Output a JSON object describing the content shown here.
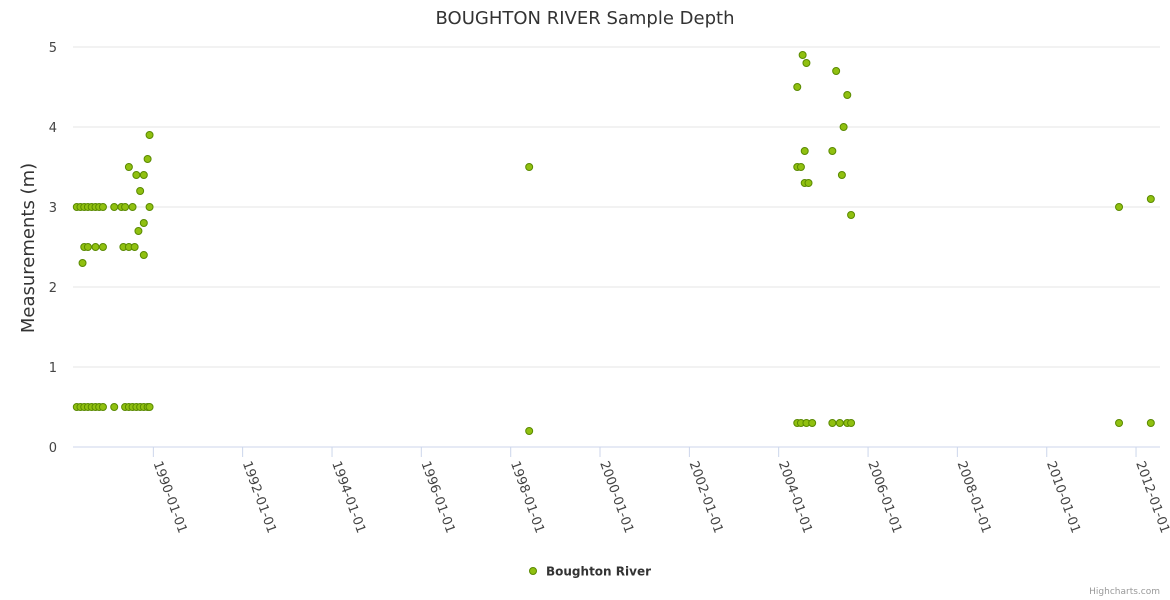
{
  "chart_data": {
    "type": "scatter",
    "title": "BOUGHTON RIVER Sample Depth",
    "xlabel": "",
    "ylabel": "Measurements (m)",
    "xlim": [
      "1988-03-15",
      "2012-07-15"
    ],
    "ylim": [
      0,
      5
    ],
    "yticks": [
      0,
      1,
      2,
      3,
      4,
      5
    ],
    "xticks": [
      "1990-01-01",
      "1992-01-01",
      "1994-01-01",
      "1996-01-01",
      "1998-01-01",
      "2000-01-01",
      "2002-01-01",
      "2004-01-01",
      "2006-01-01",
      "2008-01-01",
      "2010-01-01",
      "2012-01-01"
    ],
    "grid": true,
    "legend_position": "bottom-center",
    "colors": {
      "marker_fill": "#90c010",
      "marker_stroke": "#5a8a00",
      "grid": "#e6e6e6",
      "axis": "#ccd6eb"
    },
    "series": [
      {
        "name": "Boughton River",
        "points": [
          [
            "1988-04-15",
            3.0
          ],
          [
            "1988-05-15",
            3.0
          ],
          [
            "1988-06-15",
            3.0
          ],
          [
            "1988-07-15",
            3.0
          ],
          [
            "1988-08-15",
            3.0
          ],
          [
            "1988-09-15",
            3.0
          ],
          [
            "1988-10-15",
            3.0
          ],
          [
            "1988-11-15",
            3.0
          ],
          [
            "1989-02-15",
            3.0
          ],
          [
            "1989-04-15",
            3.0
          ],
          [
            "1989-05-15",
            3.0
          ],
          [
            "1989-07-15",
            3.0
          ],
          [
            "1989-12-01",
            3.0
          ],
          [
            "1988-06-15",
            2.5
          ],
          [
            "1988-07-15",
            2.5
          ],
          [
            "1988-09-15",
            2.5
          ],
          [
            "1988-11-15",
            2.5
          ],
          [
            "1989-05-01",
            2.5
          ],
          [
            "1989-06-15",
            2.5
          ],
          [
            "1989-08-01",
            2.5
          ],
          [
            "1988-06-01",
            2.3
          ],
          [
            "1989-06-15",
            3.5
          ],
          [
            "1989-08-15",
            3.4
          ],
          [
            "1989-10-15",
            3.4
          ],
          [
            "1989-11-15",
            3.6
          ],
          [
            "1989-12-01",
            3.9
          ],
          [
            "1989-09-15",
            3.2
          ],
          [
            "1989-10-15",
            2.8
          ],
          [
            "1989-09-01",
            2.7
          ],
          [
            "1989-10-15",
            2.4
          ],
          [
            "1988-04-15",
            0.5
          ],
          [
            "1988-05-15",
            0.5
          ],
          [
            "1988-06-15",
            0.5
          ],
          [
            "1988-07-15",
            0.5
          ],
          [
            "1988-08-15",
            0.5
          ],
          [
            "1988-09-15",
            0.5
          ],
          [
            "1988-10-15",
            0.5
          ],
          [
            "1988-11-15",
            0.5
          ],
          [
            "1989-02-15",
            0.5
          ],
          [
            "1989-05-15",
            0.5
          ],
          [
            "1989-06-15",
            0.5
          ],
          [
            "1989-07-15",
            0.5
          ],
          [
            "1989-08-15",
            0.5
          ],
          [
            "1989-09-15",
            0.5
          ],
          [
            "1989-10-15",
            0.5
          ],
          [
            "1989-11-15",
            0.5
          ],
          [
            "1989-12-01",
            0.5
          ],
          [
            "1998-06-01",
            3.5
          ],
          [
            "1998-06-01",
            0.2
          ],
          [
            "2004-06-01",
            4.5
          ],
          [
            "2004-07-15",
            4.9
          ],
          [
            "2004-08-15",
            4.8
          ],
          [
            "2005-04-15",
            4.7
          ],
          [
            "2005-07-15",
            4.4
          ],
          [
            "2005-06-15",
            4.0
          ],
          [
            "2004-08-01",
            3.7
          ],
          [
            "2005-03-15",
            3.7
          ],
          [
            "2004-06-01",
            3.5
          ],
          [
            "2004-07-01",
            3.5
          ],
          [
            "2004-08-01",
            3.3
          ],
          [
            "2004-09-01",
            3.3
          ],
          [
            "2005-06-01",
            3.4
          ],
          [
            "2005-08-15",
            2.9
          ],
          [
            "2004-06-01",
            0.3
          ],
          [
            "2004-07-01",
            0.3
          ],
          [
            "2004-08-15",
            0.3
          ],
          [
            "2004-10-01",
            0.3
          ],
          [
            "2005-03-15",
            0.3
          ],
          [
            "2005-05-15",
            0.3
          ],
          [
            "2005-07-15",
            0.3
          ],
          [
            "2005-08-15",
            0.3
          ],
          [
            "2011-08-15",
            3.0
          ],
          [
            "2012-05-01",
            3.1
          ],
          [
            "2011-08-15",
            0.3
          ],
          [
            "2012-05-01",
            0.3
          ]
        ]
      }
    ]
  },
  "credits": "Highcharts.com"
}
